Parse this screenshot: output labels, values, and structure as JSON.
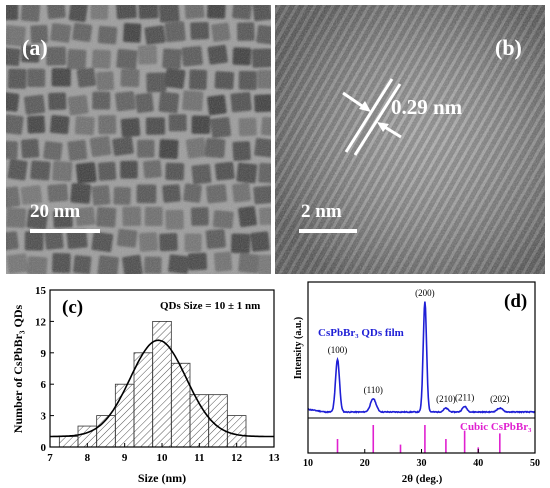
{
  "panel_a": {
    "label": "(a)",
    "scale_bar": "20 nm"
  },
  "panel_b": {
    "label": "(b)",
    "scale_bar": "2 nm",
    "fringe_spacing": "0.29 nm"
  },
  "colors": {
    "fit_curve": "#000000",
    "xrd_line": "#1f1fd6",
    "reference": "#e020d0",
    "grid_hatch": "#555555"
  },
  "chart_data": [
    {
      "type": "bar",
      "panel_label": "(c)",
      "annotation": "QDs Size = 10 ± 1 nm",
      "xlabel": "Size (nm)",
      "ylabel": "Number of CsPbBr₃ QDs",
      "xlim": [
        7,
        13
      ],
      "ylim": [
        0,
        15
      ],
      "xticks": [
        "7",
        "8",
        "9",
        "10",
        "11",
        "12",
        "13"
      ],
      "yticks": [
        "0",
        "3",
        "6",
        "9",
        "12",
        "15"
      ],
      "bin_width": 0.5,
      "bin_starts": [
        7.25,
        7.75,
        8.25,
        8.75,
        9.25,
        9.75,
        10.25,
        10.75,
        11.25,
        11.75
      ],
      "values": [
        1,
        2,
        3,
        6,
        9,
        12,
        8,
        5,
        5,
        3
      ],
      "fit": {
        "type": "gaussian",
        "center": 9.9,
        "sigma": 0.75,
        "amplitude": 9.2,
        "baseline": 1
      },
      "grid": false
    },
    {
      "type": "line",
      "panel_label": "(d)",
      "xlabel": "2θ (deg.)",
      "ylabel": "Intensity (a.u.)",
      "xlim": [
        10,
        50
      ],
      "xticks": [
        "10",
        "20",
        "30",
        "40",
        "50"
      ],
      "series": [
        {
          "name": "CsPbBr₃ QDs film",
          "baseline": 1.0,
          "peaks": [
            [
              15.2,
              4.8,
              0.35
            ],
            [
              21.5,
              1.2,
              0.5
            ],
            [
              30.6,
              10.0,
              0.3
            ],
            [
              34.3,
              0.35,
              0.4
            ],
            [
              37.6,
              0.5,
              0.4
            ],
            [
              43.8,
              0.35,
              0.5
            ]
          ]
        },
        {
          "name": "Cubic CsPbBr₃",
          "sticks": [
            [
              15.2,
              0.5
            ],
            [
              21.5,
              1.0
            ],
            [
              26.3,
              0.3
            ],
            [
              30.6,
              1.0
            ],
            [
              34.3,
              0.5
            ],
            [
              37.6,
              0.8
            ],
            [
              40.0,
              0.2
            ],
            [
              43.8,
              0.7
            ]
          ]
        }
      ],
      "peak_labels": [
        {
          "x": 15.2,
          "label": "(100)"
        },
        {
          "x": 21.5,
          "label": "(110)"
        },
        {
          "x": 30.6,
          "label": "(200)"
        },
        {
          "x": 34.3,
          "label": "(210)"
        },
        {
          "x": 37.6,
          "label": "(211)"
        },
        {
          "x": 43.8,
          "label": "(202)"
        }
      ],
      "grid": false
    }
  ]
}
